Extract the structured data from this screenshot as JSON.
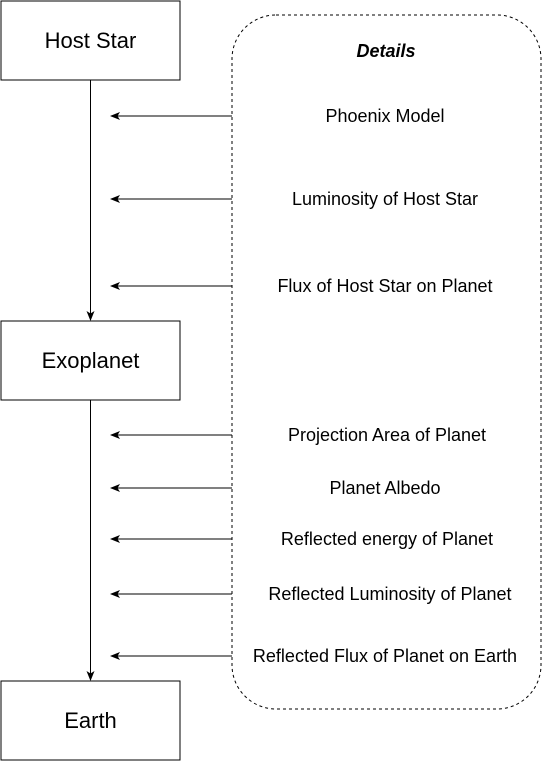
{
  "nodes": {
    "host_star": "Host Star",
    "exoplanet": "Exoplanet",
    "earth": "Earth"
  },
  "details": {
    "title": "Details",
    "items": [
      "Phoenix Model",
      "Luminosity of Host Star",
      "Flux of Host Star on Planet",
      "Projection Area of Planet",
      "Planet Albedo",
      "Reflected energy of Planet",
      "Reflected Luminosity of Planet",
      "Reflected Flux of Planet on Earth"
    ]
  }
}
